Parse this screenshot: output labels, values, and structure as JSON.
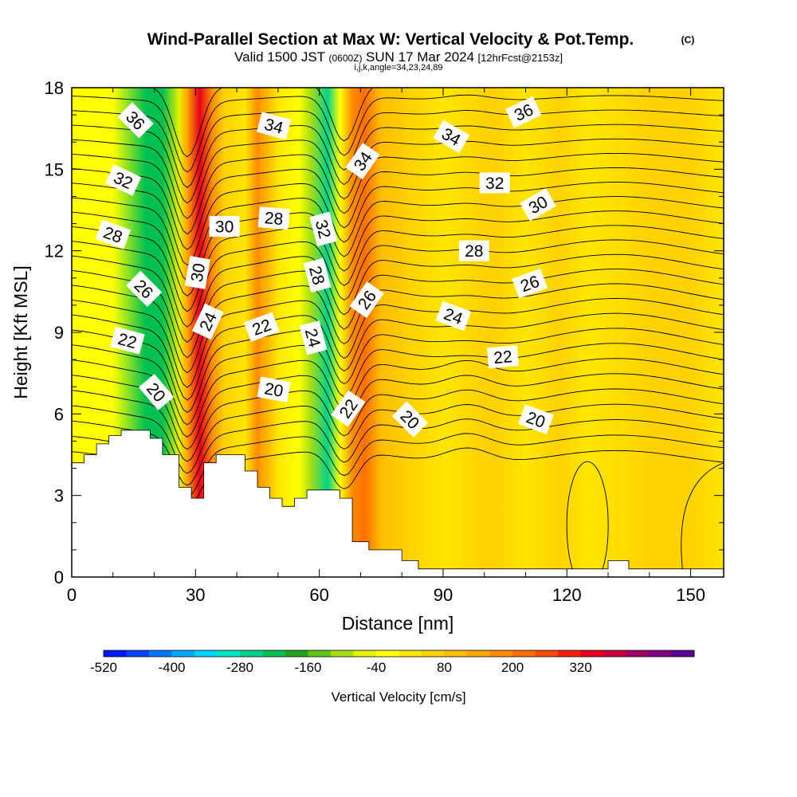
{
  "chart_data": {
    "type": "heatmap",
    "title": "Wind-Parallel Section at Max W: Vertical Velocity & Pot.Temp.",
    "copyright": "(C)",
    "subtitle_main": "Valid 1500 JST",
    "subtitle_zulu": "(0600Z)",
    "subtitle_date": "SUN 17 Mar 2024",
    "subtitle_fcst": "[12hrFcst@2153z]",
    "subtitle_index": "i,j,k,angle=34,23,24,89",
    "xlabel": "Distance [nm]",
    "ylabel": "Height [Kft MSL]",
    "xlim": [
      0,
      158
    ],
    "ylim": [
      0,
      18
    ],
    "x_ticks": [
      0,
      30,
      60,
      90,
      120,
      150
    ],
    "y_ticks": [
      0,
      3,
      6,
      9,
      12,
      15,
      18
    ],
    "colorbar": {
      "label": "Vertical Velocity [cm/s]",
      "min": -520,
      "step": 40,
      "tick_values": [
        -520,
        -400,
        -280,
        -160,
        -40,
        80,
        200,
        320
      ],
      "colors": [
        "#0019ff",
        "#0046ff",
        "#0078ff",
        "#00a8ff",
        "#00d2ff",
        "#00e6c8",
        "#00d28c",
        "#00c050",
        "#1ea51e",
        "#5cc814",
        "#a5de14",
        "#e6f000",
        "#ffff00",
        "#ffe600",
        "#ffd200",
        "#ffbe00",
        "#ffa500",
        "#ff8c00",
        "#ff6e00",
        "#ff4b00",
        "#ff1e00",
        "#e6001e",
        "#c8003c",
        "#a00064",
        "#820082",
        "#5a0096"
      ]
    },
    "vertical_velocity_bands": [
      {
        "x": 0,
        "w": -20
      },
      {
        "x": 10,
        "w": -30
      },
      {
        "x": 18,
        "w": -220
      },
      {
        "x": 22,
        "w": -240
      },
      {
        "x": 26,
        "w": -60
      },
      {
        "x": 28,
        "w": 120
      },
      {
        "x": 31,
        "w": 330
      },
      {
        "x": 34,
        "w": 160
      },
      {
        "x": 37,
        "w": 40
      },
      {
        "x": 42,
        "w": 30
      },
      {
        "x": 45,
        "w": 170
      },
      {
        "x": 50,
        "w": 30
      },
      {
        "x": 55,
        "w": -20
      },
      {
        "x": 58,
        "w": -120
      },
      {
        "x": 62,
        "w": -250
      },
      {
        "x": 65,
        "w": -40
      },
      {
        "x": 68,
        "w": 160
      },
      {
        "x": 71,
        "w": 220
      },
      {
        "x": 75,
        "w": 110
      },
      {
        "x": 82,
        "w": 40
      },
      {
        "x": 90,
        "w": 15
      },
      {
        "x": 100,
        "w": 40
      },
      {
        "x": 103,
        "w": 55
      },
      {
        "x": 110,
        "w": 30
      },
      {
        "x": 118,
        "w": 50
      },
      {
        "x": 125,
        "w": 30
      },
      {
        "x": 140,
        "w": 40
      },
      {
        "x": 150,
        "w": 45
      },
      {
        "x": 158,
        "w": 35
      }
    ],
    "theta_contours": {
      "levels": [
        20,
        22,
        24,
        26,
        28,
        30,
        32,
        34,
        36
      ],
      "labels": [
        {
          "text": "36",
          "x": 15.5,
          "y": 16.8,
          "angle": 45
        },
        {
          "text": "32",
          "x": 12.5,
          "y": 14.6,
          "angle": 25
        },
        {
          "text": "28",
          "x": 10,
          "y": 12.6,
          "angle": 20
        },
        {
          "text": "26",
          "x": 17.5,
          "y": 10.6,
          "angle": 45
        },
        {
          "text": "22",
          "x": 13.5,
          "y": 8.7,
          "angle": 15
        },
        {
          "text": "20",
          "x": 20.5,
          "y": 6.8,
          "angle": 50
        },
        {
          "text": "30",
          "x": 30.5,
          "y": 11.2,
          "angle": -80
        },
        {
          "text": "24",
          "x": 33,
          "y": 9.4,
          "angle": -65
        },
        {
          "text": "30",
          "x": 37,
          "y": 12.9,
          "angle": 0
        },
        {
          "text": "34",
          "x": 49,
          "y": 16.6,
          "angle": 15
        },
        {
          "text": "28",
          "x": 49,
          "y": 13.2,
          "angle": 5
        },
        {
          "text": "22",
          "x": 46,
          "y": 9.2,
          "angle": -20
        },
        {
          "text": "20",
          "x": 49,
          "y": 6.9,
          "angle": 10
        },
        {
          "text": "32",
          "x": 61,
          "y": 12.8,
          "angle": 75
        },
        {
          "text": "28",
          "x": 59.5,
          "y": 11.1,
          "angle": 75
        },
        {
          "text": "24",
          "x": 58.5,
          "y": 8.8,
          "angle": 75
        },
        {
          "text": "34",
          "x": 70.5,
          "y": 15.3,
          "angle": -55
        },
        {
          "text": "26",
          "x": 71.5,
          "y": 10.2,
          "angle": -55
        },
        {
          "text": "22",
          "x": 67,
          "y": 6.2,
          "angle": -55
        },
        {
          "text": "20",
          "x": 82,
          "y": 5.8,
          "angle": 45
        },
        {
          "text": "34",
          "x": 92,
          "y": 16.2,
          "angle": 30
        },
        {
          "text": "32",
          "x": 102.5,
          "y": 14.5,
          "angle": 0
        },
        {
          "text": "28",
          "x": 97.5,
          "y": 12,
          "angle": 0
        },
        {
          "text": "24",
          "x": 92.5,
          "y": 9.6,
          "angle": 20
        },
        {
          "text": "22",
          "x": 104.5,
          "y": 8.1,
          "angle": -5
        },
        {
          "text": "36",
          "x": 109.5,
          "y": 17.1,
          "angle": -25
        },
        {
          "text": "30",
          "x": 113,
          "y": 13.7,
          "angle": -30
        },
        {
          "text": "26",
          "x": 111,
          "y": 10.8,
          "angle": -20
        },
        {
          "text": "20",
          "x": 112.5,
          "y": 5.8,
          "angle": 20
        }
      ]
    }
  }
}
